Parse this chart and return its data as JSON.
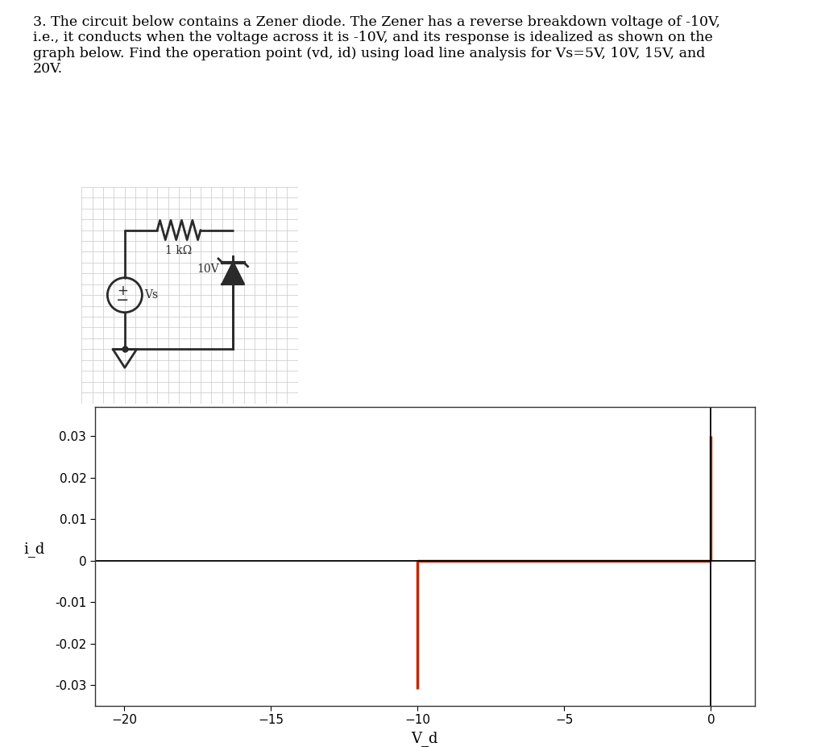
{
  "text_block": "3. The circuit below contains a Zener diode. The Zener has a reverse breakdown voltage of -10V,\ni.e., it conducts when the voltage across it is -10V, and its response is idealized as shown on the\ngraph below. Find the operation point (vd, id) using load line analysis for Vs=5V, 10V, 15V, and\n20V.",
  "text_fontsize": 12.5,
  "text_color": "#000000",
  "background_color": "#ffffff",
  "circuit_label_R": "1 kΩ",
  "circuit_label_V": "10V",
  "circuit_label_Vs": "Vs",
  "plot_xlabel": "V_d",
  "plot_ylabel": "i_d",
  "plot_xlim": [
    -21,
    1.5
  ],
  "plot_ylim": [
    -0.035,
    0.037
  ],
  "plot_xticks": [
    -20,
    -15,
    -10,
    -5,
    0
  ],
  "plot_yticks": [
    -0.03,
    -0.02,
    -0.01,
    0,
    0.01,
    0.02,
    0.03
  ],
  "plot_yticklabels": [
    "-0.03",
    "-0.02",
    "-0.01",
    "0",
    "0.01",
    "0.02",
    "0.03"
  ],
  "zener_color": "#cc2200",
  "axes_color": "#000000",
  "circuit_line_color": "#2a2a2a",
  "line_width": 2.0,
  "grid_color": "#c8c8c8",
  "circuit_grid_step": 0.5
}
